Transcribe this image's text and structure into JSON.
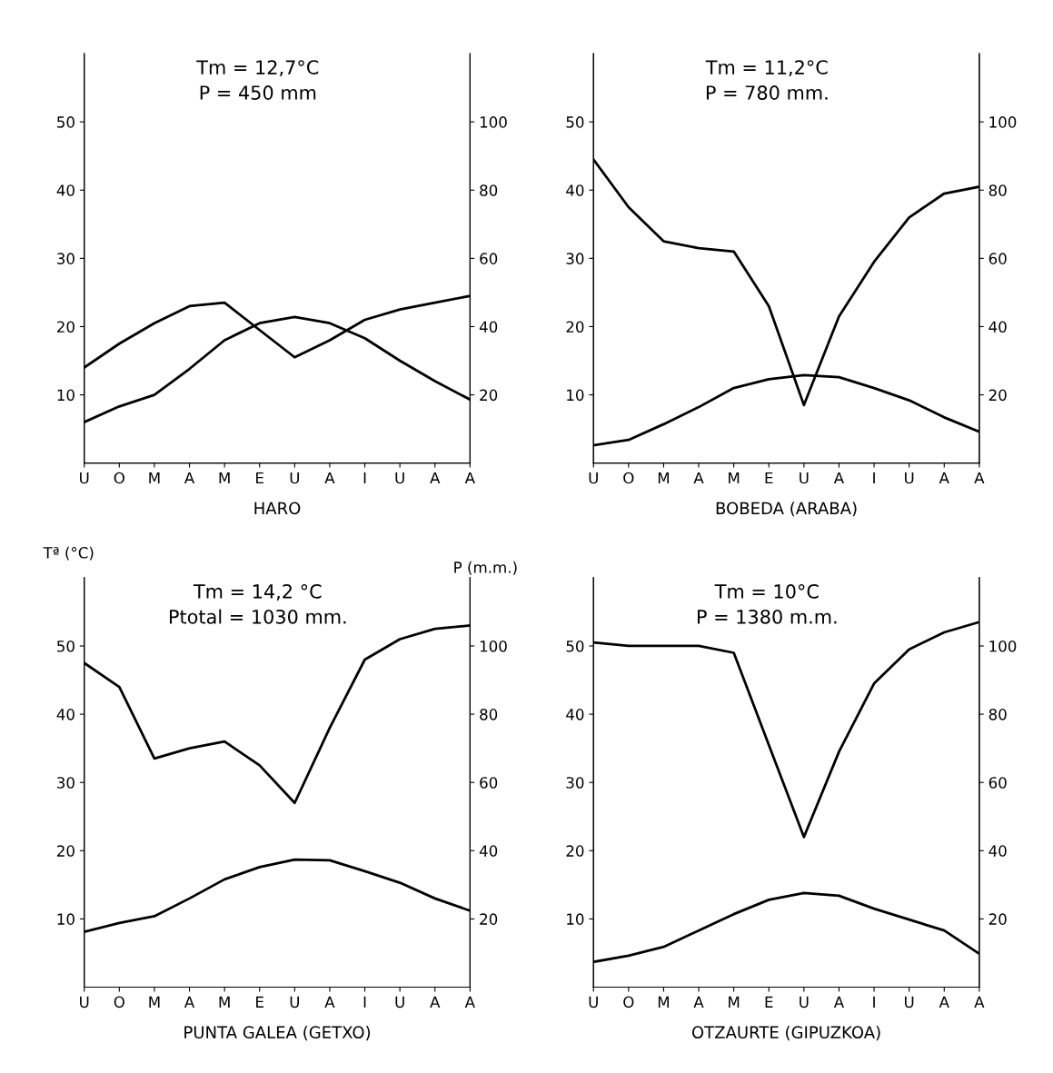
{
  "chart_data": [
    {
      "type": "line",
      "xlabel": "HARO",
      "categories": [
        "U",
        "O",
        "M",
        "A",
        "M",
        "E",
        "U",
        "A",
        "I",
        "U",
        "A",
        "A"
      ],
      "series": [
        {
          "color": "#000000",
          "values": [
            6.0,
            8.3,
            10.0,
            13.8,
            18.0,
            20.5,
            21.4,
            20.5,
            18.3,
            15.0,
            12.0,
            9.3
          ]
        },
        {
          "color": "#000000",
          "axis": "y2",
          "values": [
            28,
            35,
            41,
            46,
            47,
            39,
            31,
            36,
            42,
            45,
            47,
            49
          ]
        }
      ],
      "ylim": [
        0,
        60
      ],
      "yticks": [
        10,
        20,
        30,
        40,
        50
      ],
      "y2lim": [
        0,
        120
      ],
      "y2ticks": [
        20,
        40,
        60,
        80,
        100
      ],
      "annotations": [
        "Tm = 12,7°C",
        "P = 450 mm"
      ],
      "grid": false,
      "line_style": "solid",
      "marker": "none"
    },
    {
      "type": "line",
      "xlabel": "BOBEDA (ARABA)",
      "categories": [
        "U",
        "O",
        "M",
        "A",
        "M",
        "E",
        "U",
        "A",
        "I",
        "U",
        "A",
        "A"
      ],
      "series": [
        {
          "color": "#000000",
          "values": [
            2.6,
            3.4,
            5.7,
            8.2,
            11.0,
            12.3,
            12.9,
            12.6,
            11.0,
            9.2,
            6.7,
            4.6
          ]
        },
        {
          "color": "#000000",
          "axis": "y2",
          "values": [
            89,
            75,
            65,
            63,
            62,
            46,
            17,
            43,
            59,
            72,
            79,
            81
          ]
        }
      ],
      "ylim": [
        0,
        60
      ],
      "yticks": [
        10,
        20,
        30,
        40,
        50
      ],
      "y2lim": [
        0,
        120
      ],
      "y2ticks": [
        20,
        40,
        60,
        80,
        100
      ],
      "annotations": [
        "Tm = 11,2°C",
        "P = 780 mm."
      ],
      "grid": false,
      "line_style": "solid",
      "marker": "none"
    },
    {
      "type": "line",
      "xlabel": "PUNTA GALEA (GETXO)",
      "ylabel": "Tª (°C)",
      "y2label": "P (m.m.)",
      "categories": [
        "U",
        "O",
        "M",
        "A",
        "M",
        "E",
        "U",
        "A",
        "I",
        "U",
        "A",
        "A"
      ],
      "series": [
        {
          "color": "#000000",
          "values": [
            8.1,
            9.4,
            10.4,
            13.0,
            15.8,
            17.6,
            18.7,
            18.6,
            17.0,
            15.3,
            13.0,
            11.2
          ]
        },
        {
          "color": "#000000",
          "axis": "y2",
          "values": [
            95,
            88,
            67,
            70,
            72,
            65,
            54,
            76,
            96,
            102,
            105,
            106
          ]
        }
      ],
      "ylim": [
        0,
        60
      ],
      "yticks": [
        10,
        20,
        30,
        40,
        50
      ],
      "y2lim": [
        0,
        120
      ],
      "y2ticks": [
        20,
        40,
        60,
        80,
        100
      ],
      "annotations": [
        "Tm = 14,2 °C",
        "Ptotal = 1030 mm."
      ],
      "grid": false,
      "line_style": "solid",
      "marker": "none"
    },
    {
      "type": "line",
      "xlabel": "OTZAURTE (GIPUZKOA)",
      "categories": [
        "U",
        "O",
        "M",
        "A",
        "M",
        "E",
        "U",
        "A",
        "I",
        "U",
        "A",
        "A"
      ],
      "series": [
        {
          "color": "#000000",
          "values": [
            3.7,
            4.6,
            5.9,
            8.3,
            10.7,
            12.8,
            13.8,
            13.4,
            11.5,
            9.9,
            8.3,
            4.9
          ]
        },
        {
          "color": "#000000",
          "axis": "y2",
          "values": [
            101,
            100,
            100,
            100,
            98,
            71,
            44,
            69,
            89,
            99,
            104,
            107
          ]
        }
      ],
      "ylim": [
        0,
        60
      ],
      "yticks": [
        10,
        20,
        30,
        40,
        50
      ],
      "y2lim": [
        0,
        120
      ],
      "y2ticks": [
        20,
        40,
        60,
        80,
        100
      ],
      "annotations": [
        "Tm = 10°C",
        "P = 1380 m.m."
      ],
      "grid": false,
      "line_style": "solid",
      "marker": "none"
    }
  ]
}
